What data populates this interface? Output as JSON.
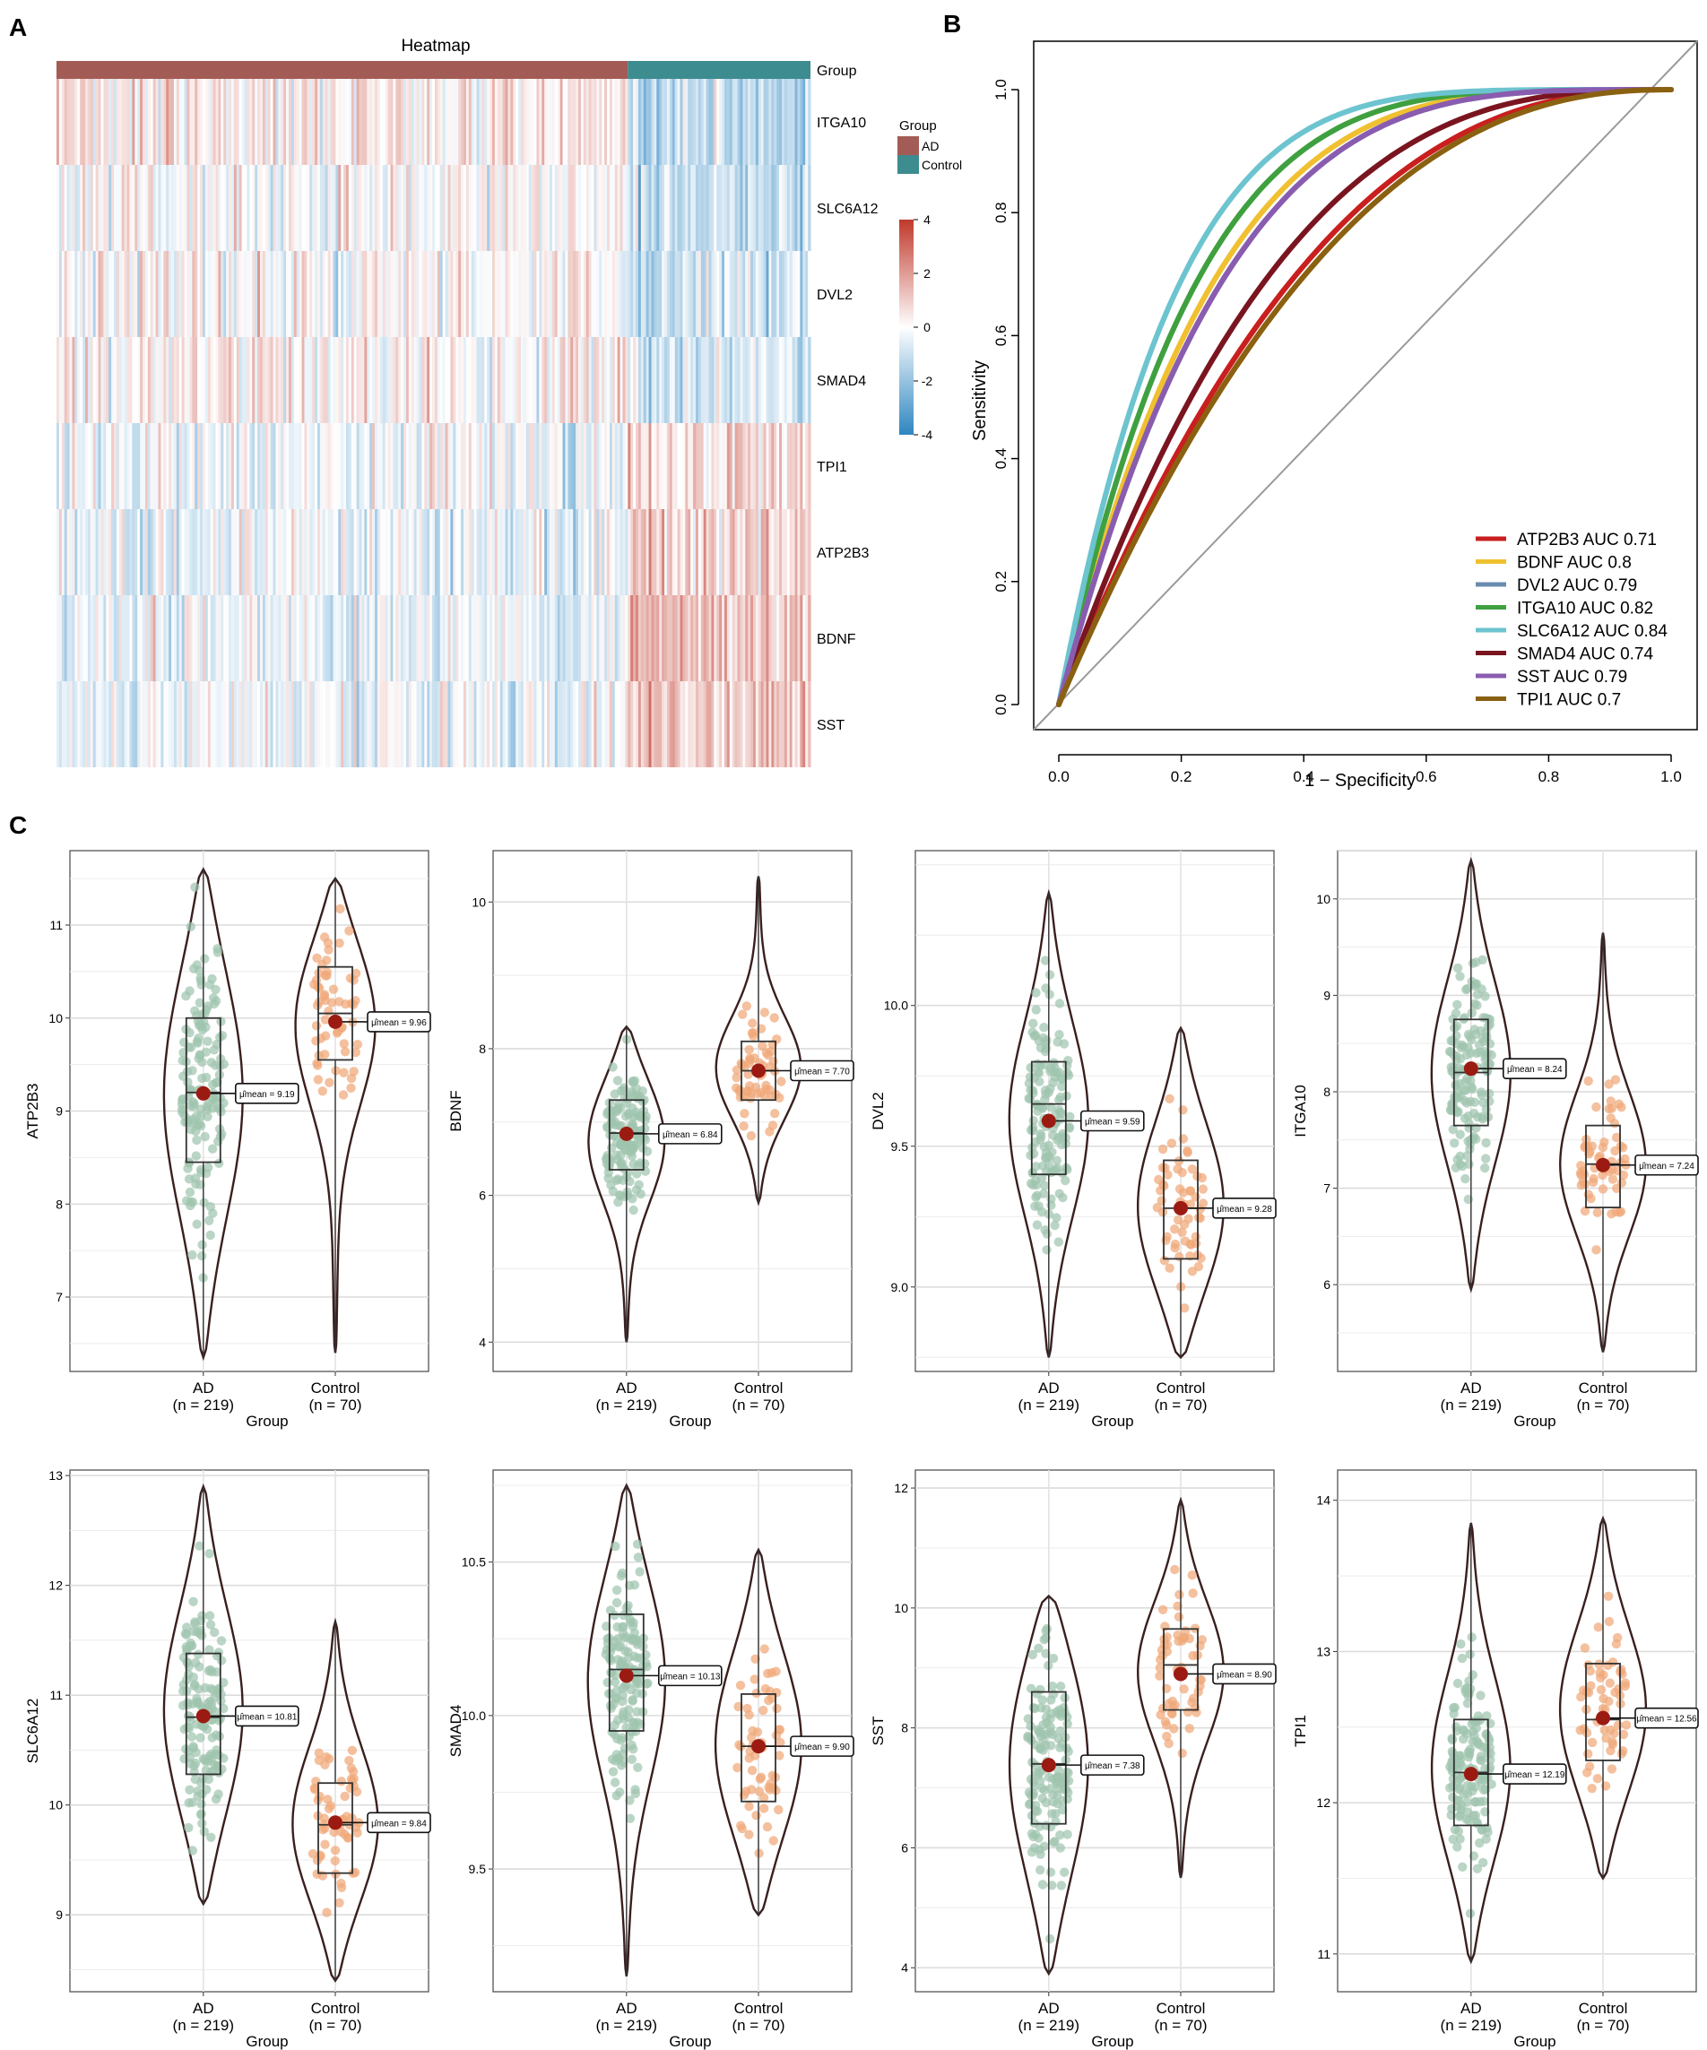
{
  "panels": {
    "a_label": "A",
    "b_label": "B",
    "c_label": "C"
  },
  "colors": {
    "ad": "#A35C55",
    "control": "#3D8C8F",
    "heat_high": "#C0392B",
    "heat_mid": "#FFFFFF",
    "heat_low": "#2E86C1",
    "ad_points": "#9FC5AE",
    "control_points": "#F0A878",
    "mean_dot": "#9B1B12",
    "violin_line": "#3A1F1F"
  },
  "chart_data": [
    {
      "type": "heatmap",
      "title": "Heatmap",
      "group_label": "Group",
      "genes": [
        "ITGA10",
        "SLC6A12",
        "DVL2",
        "SMAD4",
        "TPI1",
        "ATP2B3",
        "BDNF",
        "SST"
      ],
      "group_sizes": {
        "AD": 219,
        "Control": 70
      },
      "gene_bias": {
        "AD": [
          0.45,
          0.0,
          0.0,
          0.2,
          -0.3,
          -0.35,
          -0.4,
          -0.35
        ],
        "Control": [
          -1.1,
          -1.0,
          -0.9,
          -0.7,
          0.7,
          0.8,
          1.1,
          1.0
        ]
      },
      "legend": {
        "group_title": "Group",
        "groups": [
          "AD",
          "Control"
        ],
        "scale_ticks": [
          "4",
          "2",
          "0",
          "-2",
          "-4"
        ],
        "scale_range": [
          -4,
          4
        ]
      }
    },
    {
      "type": "line",
      "title": "",
      "xlabel": "1 − Specificity",
      "ylabel": "Sensitivity",
      "xlim": [
        0,
        1
      ],
      "ylim": [
        0,
        1
      ],
      "xticks": [
        "0.0",
        "0.2",
        "0.4",
        "0.6",
        "0.8",
        "1.0"
      ],
      "yticks": [
        "0.0",
        "0.2",
        "0.4",
        "0.6",
        "0.8",
        "1.0"
      ],
      "series": [
        {
          "name": "ATP2B3 AUC 0.71",
          "auc": 0.71,
          "color": "#C91F1F"
        },
        {
          "name": "BDNF AUC 0.8",
          "auc": 0.8,
          "color": "#F0C030"
        },
        {
          "name": "DVL2 AUC 0.79",
          "auc": 0.79,
          "color": "#6A8BB0"
        },
        {
          "name": "ITGA10 AUC 0.82",
          "auc": 0.82,
          "color": "#3FA03F"
        },
        {
          "name": "SLC6A12 AUC 0.84",
          "auc": 0.84,
          "color": "#6CC4CF"
        },
        {
          "name": "SMAD4 AUC 0.74",
          "auc": 0.74,
          "color": "#7A1520"
        },
        {
          "name": "SST AUC 0.79",
          "auc": 0.79,
          "color": "#8A5CB0"
        },
        {
          "name": "TPI1 AUC 0.7",
          "auc": 0.7,
          "color": "#8A6110"
        }
      ]
    },
    {
      "type": "violin",
      "xlabel": "Group",
      "categories": [
        "AD",
        "Control"
      ],
      "n_labels": [
        "(n = 219)",
        "(n = 70)"
      ],
      "mean_prefix": "μ̂mean = ",
      "panels": [
        {
          "gene": "ATP2B3",
          "yticks": [
            7,
            8,
            9,
            10,
            11
          ],
          "ylim": [
            6.2,
            11.8
          ],
          "groups": [
            {
              "min": 6.35,
              "max": 11.6,
              "q1": 8.45,
              "median": 9.2,
              "q3": 10.0,
              "mean": 9.19,
              "mean_label": "9.19"
            },
            {
              "min": 6.4,
              "max": 11.5,
              "q1": 9.55,
              "median": 10.05,
              "q3": 10.55,
              "mean": 9.96,
              "mean_label": "9.96"
            }
          ]
        },
        {
          "gene": "BDNF",
          "yticks": [
            4,
            6,
            8,
            10
          ],
          "ylim": [
            3.6,
            10.7
          ],
          "groups": [
            {
              "min": 4.0,
              "max": 8.3,
              "q1": 6.35,
              "median": 6.85,
              "q3": 7.3,
              "mean": 6.84,
              "mean_label": "6.84"
            },
            {
              "min": 5.9,
              "max": 10.35,
              "q1": 7.3,
              "median": 7.7,
              "q3": 8.1,
              "mean": 7.7,
              "mean_label": "7.70"
            }
          ]
        },
        {
          "gene": "DVL2",
          "yticks": [
            9.0,
            9.5,
            10.0
          ],
          "ylim": [
            8.7,
            10.55
          ],
          "groups": [
            {
              "min": 8.75,
              "max": 10.4,
              "q1": 9.4,
              "median": 9.65,
              "q3": 9.8,
              "mean": 9.59,
              "mean_label": "9.59"
            },
            {
              "min": 8.75,
              "max": 9.92,
              "q1": 9.1,
              "median": 9.28,
              "q3": 9.45,
              "mean": 9.28,
              "mean_label": "9.28"
            }
          ]
        },
        {
          "gene": "ITGA10",
          "yticks": [
            6,
            7,
            8,
            9,
            10
          ],
          "ylim": [
            5.1,
            10.5
          ],
          "groups": [
            {
              "min": 5.95,
              "max": 10.4,
              "q1": 7.65,
              "median": 8.2,
              "q3": 8.75,
              "mean": 8.24,
              "mean_label": "8.24"
            },
            {
              "min": 5.3,
              "max": 9.65,
              "q1": 6.8,
              "median": 7.25,
              "q3": 7.65,
              "mean": 7.24,
              "mean_label": "7.24"
            }
          ]
        },
        {
          "gene": "SLC6A12",
          "yticks": [
            9,
            10,
            11,
            12,
            13
          ],
          "ylim": [
            8.3,
            13.05
          ],
          "groups": [
            {
              "min": 9.1,
              "max": 12.9,
              "q1": 10.28,
              "median": 10.8,
              "q3": 11.38,
              "mean": 10.81,
              "mean_label": "10.81"
            },
            {
              "min": 8.4,
              "max": 11.67,
              "q1": 9.38,
              "median": 9.82,
              "q3": 10.2,
              "mean": 9.84,
              "mean_label": "9.84"
            }
          ]
        },
        {
          "gene": "SMAD4",
          "yticks": [
            9.5,
            10.0,
            10.5
          ],
          "ylim": [
            9.1,
            10.8
          ],
          "groups": [
            {
              "min": 9.15,
              "max": 10.75,
              "q1": 9.95,
              "median": 10.15,
              "q3": 10.33,
              "mean": 10.13,
              "mean_label": "10.13"
            },
            {
              "min": 9.35,
              "max": 10.54,
              "q1": 9.72,
              "median": 9.9,
              "q3": 10.07,
              "mean": 9.9,
              "mean_label": "9.90"
            }
          ]
        },
        {
          "gene": "SST",
          "yticks": [
            4,
            6,
            8,
            10,
            12
          ],
          "ylim": [
            3.6,
            12.3
          ],
          "groups": [
            {
              "min": 3.9,
              "max": 10.2,
              "q1": 6.4,
              "median": 7.4,
              "q3": 8.6,
              "mean": 7.38,
              "mean_label": "7.38"
            },
            {
              "min": 5.5,
              "max": 11.8,
              "q1": 8.3,
              "median": 9.05,
              "q3": 9.65,
              "mean": 8.9,
              "mean_label": "8.90"
            }
          ]
        },
        {
          "gene": "TPI1",
          "yticks": [
            11,
            12,
            13,
            14
          ],
          "ylim": [
            10.75,
            14.2
          ],
          "groups": [
            {
              "min": 10.95,
              "max": 13.85,
              "q1": 11.85,
              "median": 12.2,
              "q3": 12.55,
              "mean": 12.19,
              "mean_label": "12.19"
            },
            {
              "min": 11.5,
              "max": 13.88,
              "q1": 12.28,
              "median": 12.55,
              "q3": 12.92,
              "mean": 12.56,
              "mean_label": "12.56"
            }
          ]
        }
      ]
    }
  ]
}
